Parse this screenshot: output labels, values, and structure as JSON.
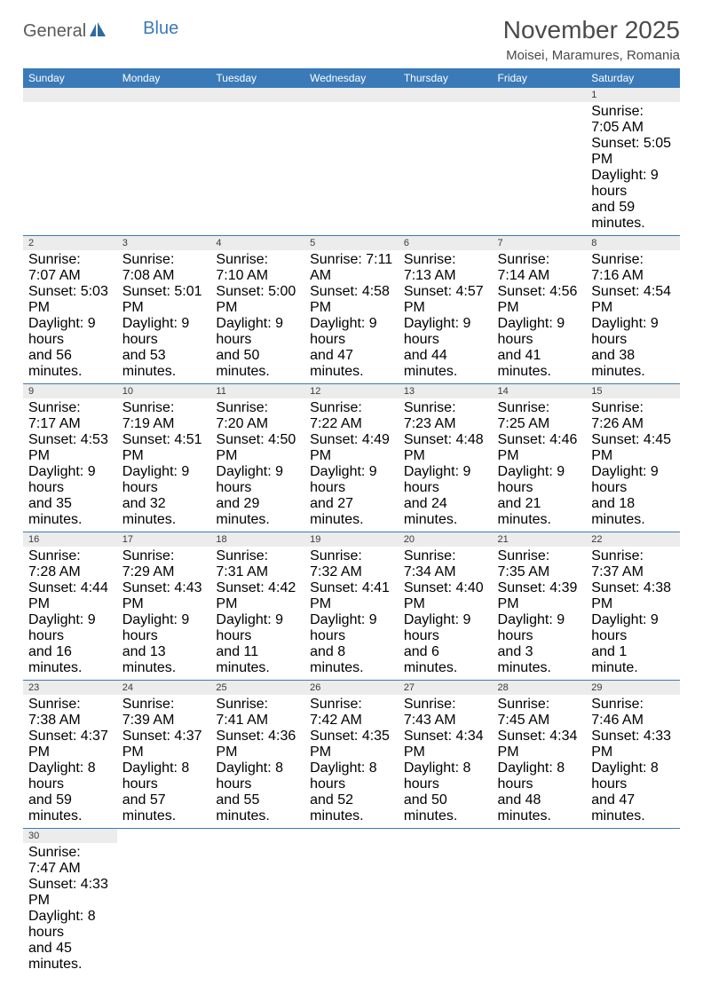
{
  "logo": {
    "general": "General",
    "blue": "Blue"
  },
  "header": {
    "title": "November 2025",
    "location": "Moisei, Maramures, Romania"
  },
  "colors": {
    "header_bg": "#3a7ab8",
    "header_text": "#ffffff",
    "daynum_bg": "#ececec",
    "text": "#3a3a3a",
    "rule": "#3a7ab8"
  },
  "weekdays": [
    "Sunday",
    "Monday",
    "Tuesday",
    "Wednesday",
    "Thursday",
    "Friday",
    "Saturday"
  ],
  "weeks": [
    [
      null,
      null,
      null,
      null,
      null,
      null,
      {
        "n": "1",
        "sr": "Sunrise: 7:05 AM",
        "ss": "Sunset: 5:05 PM",
        "d1": "Daylight: 9 hours",
        "d2": "and 59 minutes."
      }
    ],
    [
      {
        "n": "2",
        "sr": "Sunrise: 7:07 AM",
        "ss": "Sunset: 5:03 PM",
        "d1": "Daylight: 9 hours",
        "d2": "and 56 minutes."
      },
      {
        "n": "3",
        "sr": "Sunrise: 7:08 AM",
        "ss": "Sunset: 5:01 PM",
        "d1": "Daylight: 9 hours",
        "d2": "and 53 minutes."
      },
      {
        "n": "4",
        "sr": "Sunrise: 7:10 AM",
        "ss": "Sunset: 5:00 PM",
        "d1": "Daylight: 9 hours",
        "d2": "and 50 minutes."
      },
      {
        "n": "5",
        "sr": "Sunrise: 7:11 AM",
        "ss": "Sunset: 4:58 PM",
        "d1": "Daylight: 9 hours",
        "d2": "and 47 minutes."
      },
      {
        "n": "6",
        "sr": "Sunrise: 7:13 AM",
        "ss": "Sunset: 4:57 PM",
        "d1": "Daylight: 9 hours",
        "d2": "and 44 minutes."
      },
      {
        "n": "7",
        "sr": "Sunrise: 7:14 AM",
        "ss": "Sunset: 4:56 PM",
        "d1": "Daylight: 9 hours",
        "d2": "and 41 minutes."
      },
      {
        "n": "8",
        "sr": "Sunrise: 7:16 AM",
        "ss": "Sunset: 4:54 PM",
        "d1": "Daylight: 9 hours",
        "d2": "and 38 minutes."
      }
    ],
    [
      {
        "n": "9",
        "sr": "Sunrise: 7:17 AM",
        "ss": "Sunset: 4:53 PM",
        "d1": "Daylight: 9 hours",
        "d2": "and 35 minutes."
      },
      {
        "n": "10",
        "sr": "Sunrise: 7:19 AM",
        "ss": "Sunset: 4:51 PM",
        "d1": "Daylight: 9 hours",
        "d2": "and 32 minutes."
      },
      {
        "n": "11",
        "sr": "Sunrise: 7:20 AM",
        "ss": "Sunset: 4:50 PM",
        "d1": "Daylight: 9 hours",
        "d2": "and 29 minutes."
      },
      {
        "n": "12",
        "sr": "Sunrise: 7:22 AM",
        "ss": "Sunset: 4:49 PM",
        "d1": "Daylight: 9 hours",
        "d2": "and 27 minutes."
      },
      {
        "n": "13",
        "sr": "Sunrise: 7:23 AM",
        "ss": "Sunset: 4:48 PM",
        "d1": "Daylight: 9 hours",
        "d2": "and 24 minutes."
      },
      {
        "n": "14",
        "sr": "Sunrise: 7:25 AM",
        "ss": "Sunset: 4:46 PM",
        "d1": "Daylight: 9 hours",
        "d2": "and 21 minutes."
      },
      {
        "n": "15",
        "sr": "Sunrise: 7:26 AM",
        "ss": "Sunset: 4:45 PM",
        "d1": "Daylight: 9 hours",
        "d2": "and 18 minutes."
      }
    ],
    [
      {
        "n": "16",
        "sr": "Sunrise: 7:28 AM",
        "ss": "Sunset: 4:44 PM",
        "d1": "Daylight: 9 hours",
        "d2": "and 16 minutes."
      },
      {
        "n": "17",
        "sr": "Sunrise: 7:29 AM",
        "ss": "Sunset: 4:43 PM",
        "d1": "Daylight: 9 hours",
        "d2": "and 13 minutes."
      },
      {
        "n": "18",
        "sr": "Sunrise: 7:31 AM",
        "ss": "Sunset: 4:42 PM",
        "d1": "Daylight: 9 hours",
        "d2": "and 11 minutes."
      },
      {
        "n": "19",
        "sr": "Sunrise: 7:32 AM",
        "ss": "Sunset: 4:41 PM",
        "d1": "Daylight: 9 hours",
        "d2": "and 8 minutes."
      },
      {
        "n": "20",
        "sr": "Sunrise: 7:34 AM",
        "ss": "Sunset: 4:40 PM",
        "d1": "Daylight: 9 hours",
        "d2": "and 6 minutes."
      },
      {
        "n": "21",
        "sr": "Sunrise: 7:35 AM",
        "ss": "Sunset: 4:39 PM",
        "d1": "Daylight: 9 hours",
        "d2": "and 3 minutes."
      },
      {
        "n": "22",
        "sr": "Sunrise: 7:37 AM",
        "ss": "Sunset: 4:38 PM",
        "d1": "Daylight: 9 hours",
        "d2": "and 1 minute."
      }
    ],
    [
      {
        "n": "23",
        "sr": "Sunrise: 7:38 AM",
        "ss": "Sunset: 4:37 PM",
        "d1": "Daylight: 8 hours",
        "d2": "and 59 minutes."
      },
      {
        "n": "24",
        "sr": "Sunrise: 7:39 AM",
        "ss": "Sunset: 4:37 PM",
        "d1": "Daylight: 8 hours",
        "d2": "and 57 minutes."
      },
      {
        "n": "25",
        "sr": "Sunrise: 7:41 AM",
        "ss": "Sunset: 4:36 PM",
        "d1": "Daylight: 8 hours",
        "d2": "and 55 minutes."
      },
      {
        "n": "26",
        "sr": "Sunrise: 7:42 AM",
        "ss": "Sunset: 4:35 PM",
        "d1": "Daylight: 8 hours",
        "d2": "and 52 minutes."
      },
      {
        "n": "27",
        "sr": "Sunrise: 7:43 AM",
        "ss": "Sunset: 4:34 PM",
        "d1": "Daylight: 8 hours",
        "d2": "and 50 minutes."
      },
      {
        "n": "28",
        "sr": "Sunrise: 7:45 AM",
        "ss": "Sunset: 4:34 PM",
        "d1": "Daylight: 8 hours",
        "d2": "and 48 minutes."
      },
      {
        "n": "29",
        "sr": "Sunrise: 7:46 AM",
        "ss": "Sunset: 4:33 PM",
        "d1": "Daylight: 8 hours",
        "d2": "and 47 minutes."
      }
    ],
    [
      {
        "n": "30",
        "sr": "Sunrise: 7:47 AM",
        "ss": "Sunset: 4:33 PM",
        "d1": "Daylight: 8 hours",
        "d2": "and 45 minutes."
      },
      null,
      null,
      null,
      null,
      null,
      null
    ]
  ]
}
